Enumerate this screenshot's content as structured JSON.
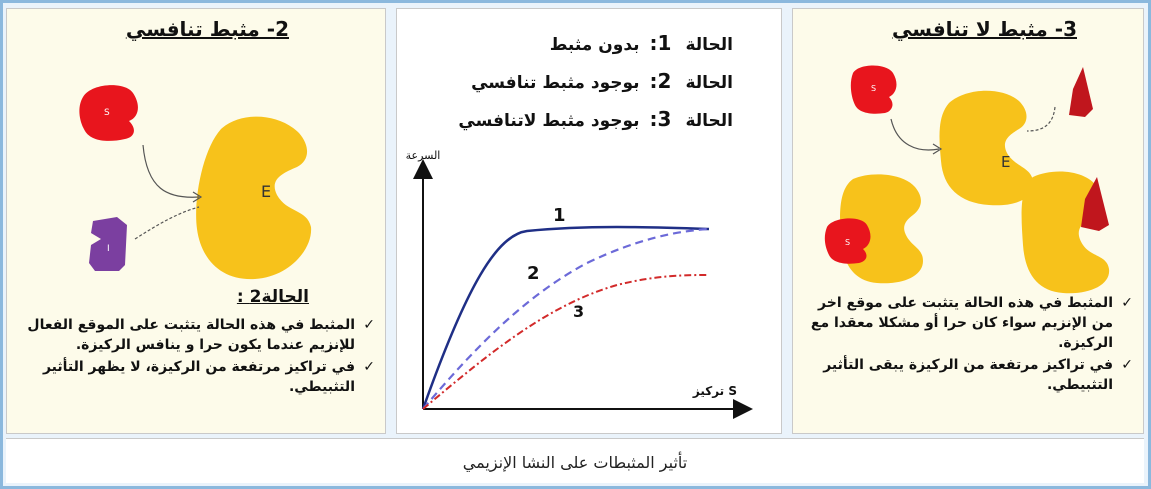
{
  "panels": {
    "competitive": {
      "title": "2- مثبط تنافسي",
      "enzyme_label": "E",
      "substrate_label": "S",
      "inhibitor_label": "I",
      "case_header": "الحالة2 :",
      "bullets": [
        "المثبط في هذه الحالة يتثبت على الموقع الفعال للإنزيم عندما يكون حرا و ينافس الركيزة.",
        "في تراكيز مرتفعة من الركيزة، لا يظهر التأثير التثبيطي."
      ]
    },
    "graph": {
      "cases": [
        {
          "label": "الحالة",
          "num": "1:",
          "text": "بدون مثبط"
        },
        {
          "label": "الحالة",
          "num": "2:",
          "text": "بوجود مثبط تنافسي"
        },
        {
          "label": "الحالة",
          "num": "3:",
          "text": "بوجود مثبط لاتنافسي"
        }
      ],
      "y_axis_label": "السرعة",
      "x_axis_label": "تركيز S",
      "curve_labels": [
        "1",
        "2",
        "3"
      ]
    },
    "noncompetitive": {
      "title": "3- مثبط لا تنافسي",
      "enzyme_label": "E",
      "substrate_label": "S",
      "bullets": [
        "المثبط في هذه الحالة يتثبت على موقع اخر من الإنزيم سواء كان حرا أو مشكلا معقدا مع الركيزة.",
        "في تراكيز مرتفعة من الركيزة يبقى التأثير التثبيطي."
      ]
    }
  },
  "caption": "تأثير المثبطات على النشا الإنزيمي",
  "colors": {
    "enzyme": "#f7c21b",
    "substrate": "#e8151d",
    "inhibitor_competitive": "#7b3fa0",
    "inhibitor_noncompetitive": "#c0161d",
    "curve1": "#1f2f86",
    "curve2": "#6c6ad8",
    "curve3": "#d22a2a"
  }
}
